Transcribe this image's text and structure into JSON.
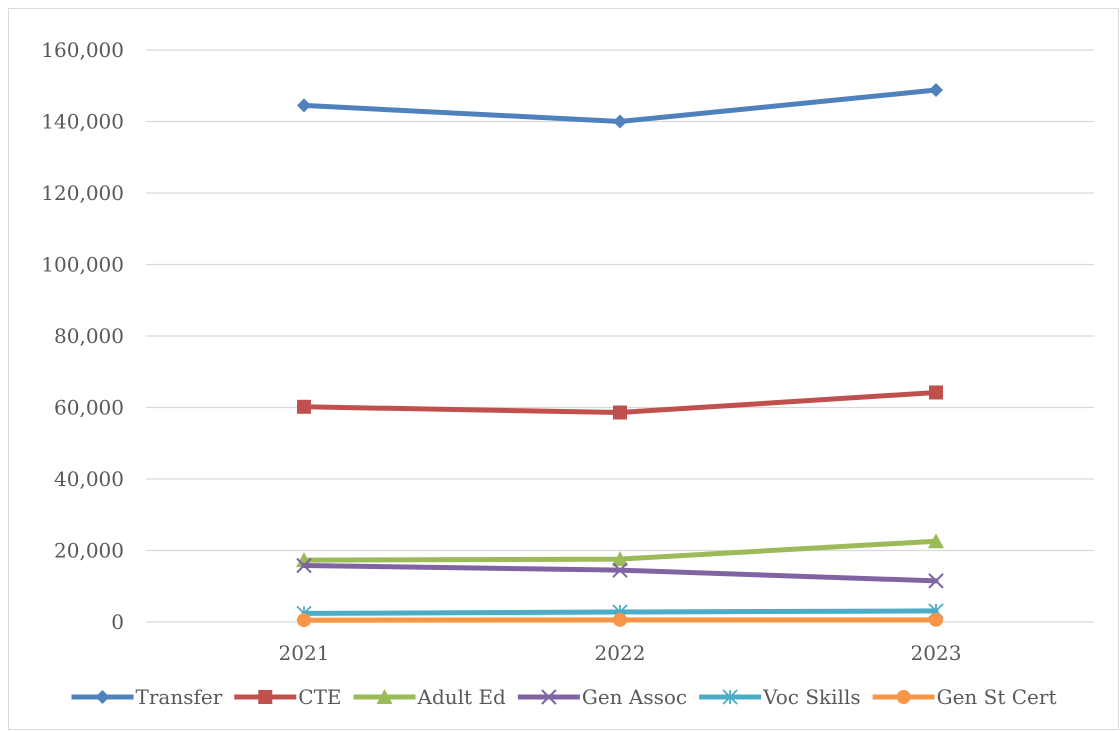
{
  "chart_data": {
    "type": "line",
    "title": "",
    "xlabel": "",
    "ylabel": "",
    "categories": [
      "2021",
      "2022",
      "2023"
    ],
    "ylim": [
      0,
      160000
    ],
    "yticks": [
      0,
      20000,
      40000,
      60000,
      80000,
      100000,
      120000,
      140000,
      160000
    ],
    "ytick_labels": [
      "0",
      "20,000",
      "40,000",
      "60,000",
      "80,000",
      "100,000",
      "120,000",
      "140,000",
      "160,000"
    ],
    "grid": true,
    "legend_position": "bottom",
    "series": [
      {
        "name": "Transfer",
        "values": [
          144500,
          140000,
          148800
        ],
        "color": "#4f81bd",
        "marker": "diamond"
      },
      {
        "name": "CTE",
        "values": [
          60200,
          58600,
          64200
        ],
        "color": "#c0504d",
        "marker": "square"
      },
      {
        "name": "Adult Ed",
        "values": [
          17300,
          17600,
          22600
        ],
        "color": "#9bbb59",
        "marker": "triangle"
      },
      {
        "name": "Gen Assoc",
        "values": [
          15800,
          14500,
          11500
        ],
        "color": "#8064a2",
        "marker": "x"
      },
      {
        "name": "Voc Skills",
        "values": [
          2400,
          2800,
          3100
        ],
        "color": "#4bacc6",
        "marker": "star"
      },
      {
        "name": "Gen St Cert",
        "values": [
          500,
          600,
          600
        ],
        "color": "#f79646",
        "marker": "circle"
      }
    ]
  }
}
